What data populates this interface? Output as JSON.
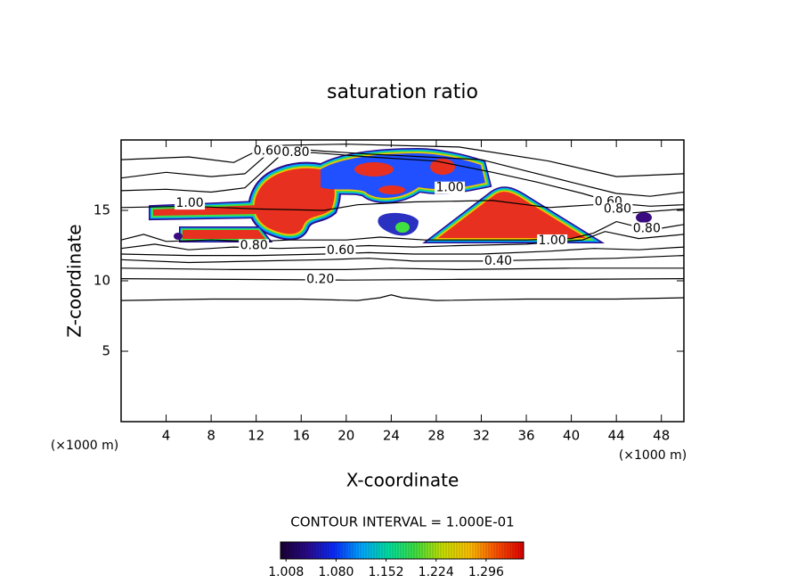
{
  "chart_data": {
    "type": "contour",
    "title": "saturation ratio",
    "xlabel": "X-coordinate",
    "ylabel": "Z-coordinate",
    "xunit": "(×1000 m)",
    "yunit": "(×1000 m)",
    "xlim": [
      0,
      50
    ],
    "ylim": [
      0,
      20
    ],
    "xticks": [
      4,
      8,
      12,
      16,
      20,
      24,
      28,
      32,
      36,
      40,
      44,
      48
    ],
    "yticks": [
      5,
      10,
      15
    ],
    "line_color": "#000000",
    "contours": [
      {
        "level": 0.1,
        "x": [
          0,
          8,
          16,
          21,
          23,
          24,
          25,
          28,
          36,
          44,
          50
        ],
        "z": [
          8.6,
          8.7,
          8.7,
          8.6,
          8.8,
          9.0,
          8.8,
          8.6,
          8.7,
          8.7,
          8.8
        ]
      },
      {
        "level": 0.2,
        "x": [
          0,
          10,
          20,
          30,
          40,
          50
        ],
        "z": [
          10.15,
          10.1,
          10.05,
          10.1,
          10.1,
          10.15
        ]
      },
      {
        "level": 0.3,
        "x": [
          0,
          10,
          20,
          24,
          30,
          40,
          50
        ],
        "z": [
          10.9,
          10.8,
          10.8,
          10.9,
          10.8,
          10.9,
          10.9
        ]
      },
      {
        "level": 0.4,
        "x": [
          0,
          6,
          12,
          18,
          22,
          26,
          32,
          38,
          44,
          50
        ],
        "z": [
          11.5,
          11.3,
          11.4,
          11.5,
          11.6,
          11.4,
          11.4,
          11.5,
          11.6,
          11.8
        ]
      },
      {
        "level": 0.5,
        "x": [
          0,
          6,
          12,
          18,
          22,
          26,
          32,
          38,
          42,
          46,
          50
        ],
        "z": [
          11.9,
          11.8,
          11.8,
          11.9,
          12.0,
          11.9,
          11.9,
          12.1,
          12.3,
          12.2,
          12.4
        ]
      },
      {
        "level": 0.6,
        "x": [
          0,
          3,
          6,
          10,
          14,
          19,
          22,
          26,
          30,
          36,
          41,
          43,
          46,
          50
        ],
        "z": [
          12.3,
          12.6,
          12.2,
          12.4,
          12.3,
          12.4,
          12.5,
          12.4,
          12.5,
          12.6,
          12.9,
          13.5,
          13.0,
          13.3
        ]
      },
      {
        "level": 0.8,
        "x": [
          0,
          2,
          4,
          8,
          12,
          15,
          20,
          23,
          27,
          30,
          36,
          40,
          42,
          44,
          47,
          50
        ],
        "z": [
          12.9,
          13.3,
          12.8,
          12.9,
          12.8,
          12.9,
          12.9,
          13.1,
          12.9,
          12.9,
          12.9,
          13.0,
          13.4,
          14.2,
          13.6,
          14.0
        ]
      },
      {
        "level": 0.9,
        "x": [
          0,
          6,
          12,
          18,
          21,
          26,
          33,
          38,
          42,
          45,
          50
        ],
        "z": [
          15.2,
          15.3,
          15.1,
          15.0,
          15.4,
          15.6,
          15.7,
          15.2,
          15.4,
          14.8,
          15.1
        ]
      },
      {
        "level": 0.4,
        "x": [
          0,
          6,
          10,
          13,
          20,
          30,
          38,
          44,
          50
        ],
        "z": [
          18.6,
          18.8,
          18.4,
          19.6,
          19.7,
          19.5,
          18.5,
          17.4,
          17.6
        ]
      },
      {
        "level": 0.6,
        "x": [
          0,
          4,
          8,
          11,
          13,
          15,
          18,
          22,
          27,
          32,
          36,
          40,
          44,
          47,
          50
        ],
        "z": [
          17.3,
          17.7,
          17.4,
          17.6,
          19.0,
          19.4,
          19.2,
          19.0,
          18.8,
          18.6,
          17.8,
          17.0,
          16.2,
          16.0,
          16.3
        ]
      },
      {
        "level": 0.8,
        "x": [
          0,
          4,
          8,
          11,
          14,
          17,
          22,
          28,
          33,
          37,
          41,
          44,
          47,
          50
        ],
        "z": [
          16.4,
          16.5,
          16.3,
          16.6,
          18.8,
          19.1,
          18.8,
          18.5,
          17.7,
          17.0,
          16.2,
          15.5,
          15.3,
          15.4
        ]
      }
    ],
    "contour_labels": [
      {
        "value": 0.2,
        "label": "0.20",
        "x": 17.7,
        "z": 10.1
      },
      {
        "value": 0.4,
        "label": "0.40",
        "x": 33.5,
        "z": 11.4
      },
      {
        "value": 0.6,
        "label": "0.60",
        "x": 19.5,
        "z": 12.15
      },
      {
        "value": 0.8,
        "label": "0.80",
        "x": 11.8,
        "z": 12.5
      },
      {
        "value": 1,
        "label": "1.00",
        "x": 38.3,
        "z": 12.85
      },
      {
        "value": 1,
        "label": "1.00",
        "x": 6.1,
        "z": 15.5
      },
      {
        "value": 1,
        "label": "1.00",
        "x": 29.2,
        "z": 16.6
      },
      {
        "value": 0.6,
        "label": "0.60",
        "x": 13.0,
        "z": 19.2
      },
      {
        "value": 0.8,
        "label": "0.80",
        "x": 15.5,
        "z": 19.1
      },
      {
        "value": 0.6,
        "label": "0.60",
        "x": 43.3,
        "z": 15.6
      },
      {
        "value": 0.8,
        "label": "0.80",
        "x": 44.1,
        "z": 15.1
      },
      {
        "value": 0.8,
        "label": "0.80",
        "x": 46.7,
        "z": 13.7
      }
    ],
    "contour_interval_text": "CONTOUR INTERVAL = 1.000E-01",
    "colorbar": {
      "lim": [
        1.0,
        1.35
      ],
      "ticks": [
        1.008,
        {
          "value": 1.08,
          "label": "1.080"
        },
        1.152,
        1.224,
        1.296
      ],
      "colormap": [
        "#1a0030",
        "#2a0a8c",
        "#0a2cff",
        "#00a8ff",
        "#00e0a0",
        "#40e040",
        "#c8e000",
        "#ffc000",
        "#ff5000",
        "#e00000"
      ]
    }
  }
}
